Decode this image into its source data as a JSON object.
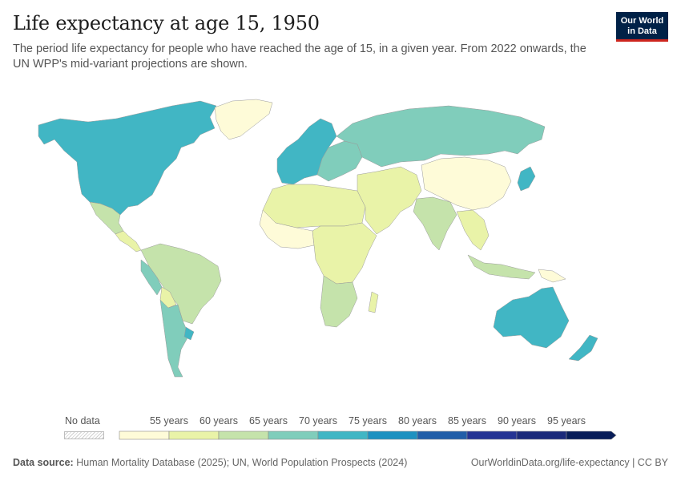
{
  "header": {
    "title": "Life expectancy at age 15, 1950",
    "subtitle": "The period life expectancy for people who have reached the age of 15, in a given year. From 2022 onwards, the UN WPP's mid-variant projections are shown."
  },
  "logo": {
    "line1": "Our World",
    "line2": "in Data"
  },
  "legend": {
    "no_data_label": "No data",
    "ticks": [
      "55 years",
      "60 years",
      "65 years",
      "70 years",
      "75 years",
      "80 years",
      "85 years",
      "90 years",
      "95 years"
    ],
    "colors": [
      "#fefbd8",
      "#e9f3a8",
      "#c5e3ab",
      "#80cdbb",
      "#41b6c4",
      "#1d91c0",
      "#225ea8",
      "#253494",
      "#1b2a7a",
      "#081d58"
    ]
  },
  "footer": {
    "source_label": "Data source:",
    "source_text": "Human Mortality Database (2025); UN, World Population Prospects (2024)",
    "url_text": "OurWorldinData.org/life-expectancy | CC BY"
  },
  "map_regions": [
    {
      "name": "canada-usa",
      "color": "#41b6c4"
    },
    {
      "name": "greenland",
      "color": "#fefbd8"
    },
    {
      "name": "mexico",
      "color": "#c5e3ab"
    },
    {
      "name": "central-america",
      "color": "#e9f3a8"
    },
    {
      "name": "south-america-north",
      "color": "#c5e3ab"
    },
    {
      "name": "peru",
      "color": "#80cdbb"
    },
    {
      "name": "bolivia",
      "color": "#e9f3a8"
    },
    {
      "name": "southern-cone",
      "color": "#80cdbb"
    },
    {
      "name": "uruguay",
      "color": "#41b6c4"
    },
    {
      "name": "western-europe",
      "color": "#41b6c4"
    },
    {
      "name": "eastern-europe",
      "color": "#80cdbb"
    },
    {
      "name": "russia",
      "color": "#80cdbb"
    },
    {
      "name": "north-africa",
      "color": "#e9f3a8"
    },
    {
      "name": "west-africa",
      "color": "#fefbd8"
    },
    {
      "name": "central-africa",
      "color": "#e9f3a8"
    },
    {
      "name": "southern-africa",
      "color": "#c5e3ab"
    },
    {
      "name": "madagascar",
      "color": "#e9f3a8"
    },
    {
      "name": "middle-east",
      "color": "#e9f3a8"
    },
    {
      "name": "india",
      "color": "#c5e3ab"
    },
    {
      "name": "china",
      "color": "#fefbd8"
    },
    {
      "name": "japan",
      "color": "#41b6c4"
    },
    {
      "name": "southeast-asia",
      "color": "#e9f3a8"
    },
    {
      "name": "indonesia",
      "color": "#c5e3ab"
    },
    {
      "name": "australia",
      "color": "#41b6c4"
    },
    {
      "name": "new-zealand",
      "color": "#41b6c4"
    },
    {
      "name": "png",
      "color": "#fefbd8"
    }
  ]
}
